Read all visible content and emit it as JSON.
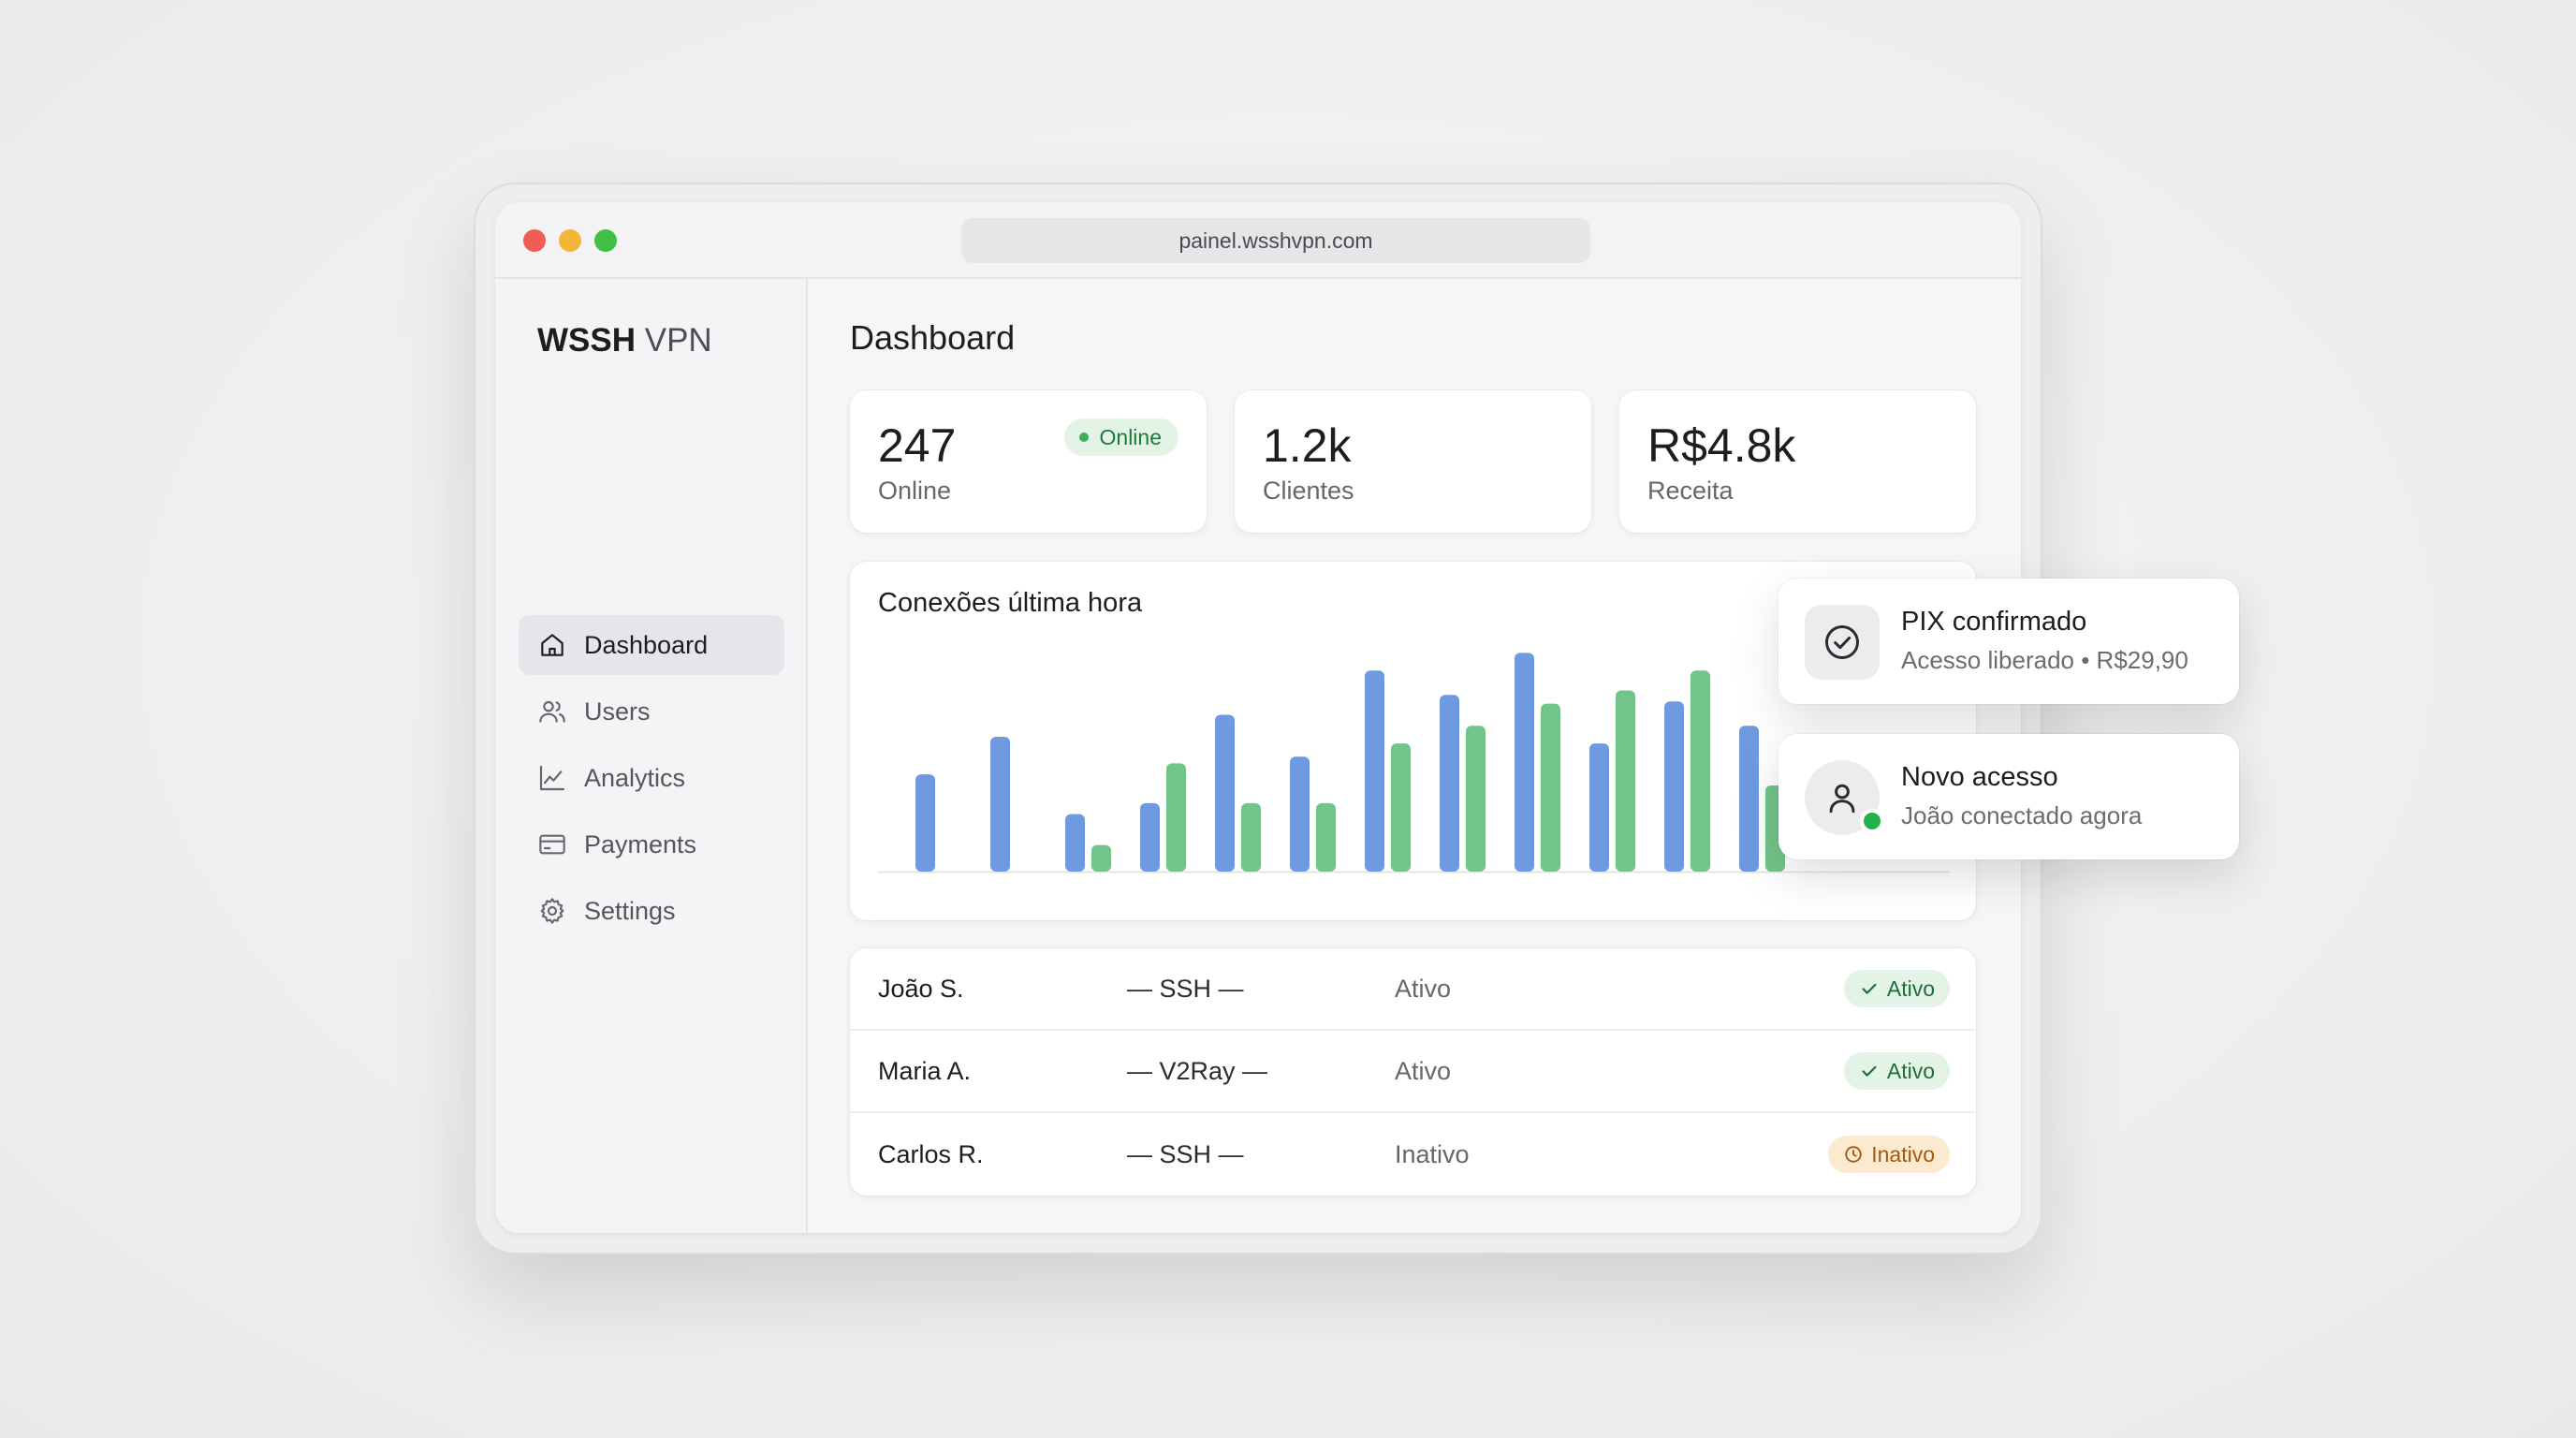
{
  "browser": {
    "url": "painel.wsshvpn.com"
  },
  "sidebar": {
    "brand_bold": "WSSH",
    "brand_light": "VPN",
    "items": [
      {
        "label": "Dashboard",
        "icon": "home-icon",
        "active": true
      },
      {
        "label": "Users",
        "icon": "users-icon",
        "active": false
      },
      {
        "label": "Analytics",
        "icon": "analytics-icon",
        "active": false
      },
      {
        "label": "Payments",
        "icon": "credit-card-icon",
        "active": false
      },
      {
        "label": "Settings",
        "icon": "gear-icon",
        "active": false
      }
    ]
  },
  "main": {
    "title": "Dashboard",
    "stats": [
      {
        "value": "247",
        "label": "Online",
        "badge": "Online"
      },
      {
        "value": "1.2k",
        "label": "Clientes"
      },
      {
        "value": "R$4.8k",
        "label": "Receita"
      }
    ]
  },
  "chart_data": {
    "type": "bar",
    "title": "Conexões última hora",
    "xlabel": "",
    "ylabel": "",
    "grid": false,
    "ylim": [
      0,
      100
    ],
    "categories": [
      "",
      "",
      "",
      "",
      "",
      "",
      "",
      "",
      "",
      "",
      "",
      ""
    ],
    "series": [
      {
        "color": "#6f9ae0",
        "values": [
          44,
          61,
          26,
          31,
          71,
          52,
          91,
          80,
          99,
          58,
          77,
          66
        ]
      },
      {
        "color": "#72c48a",
        "values": [
          0,
          0,
          12,
          49,
          31,
          31,
          58,
          66,
          76,
          82,
          91,
          39
        ]
      }
    ]
  },
  "table": {
    "rows": [
      {
        "name": "João S.",
        "protocol": "— SSH —",
        "status": "Ativo",
        "badge": "Ativo",
        "badge_type": "ok"
      },
      {
        "name": "Maria A.",
        "protocol": "— V2Ray —",
        "status": "Ativo",
        "badge": "Ativo",
        "badge_type": "ok"
      },
      {
        "name": "Carlos R.",
        "protocol": "— SSH —",
        "status": "Inativo",
        "badge": "Inativo",
        "badge_type": "warn"
      }
    ]
  },
  "notifications": [
    {
      "title": "PIX confirmado",
      "subtitle": "Acesso liberado • R$29,90",
      "icon": "check-circle-icon"
    },
    {
      "title": "Novo acesso",
      "subtitle": "João conectado agora",
      "icon": "user-avatar-icon"
    }
  ],
  "colors": {
    "online": "#22b14c",
    "bar_blue": "#6f9ae0",
    "bar_green": "#72c48a",
    "ok_badge": "#e3f4e7",
    "warn_badge": "#fbe9d0"
  }
}
